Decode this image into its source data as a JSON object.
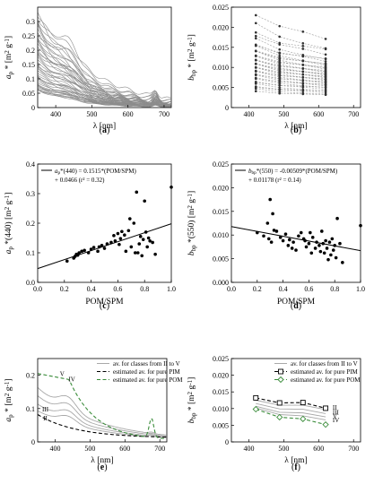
{
  "panels": [
    {
      "id": "a",
      "caption_letter": "a",
      "type": "line",
      "xlabel": "λ [nm]",
      "ylabel": "a_p* [m² g⁻¹]",
      "xlim": [
        350,
        720
      ],
      "ylim": [
        0,
        0.35
      ],
      "xticks": [
        400,
        500,
        600,
        700
      ],
      "yticks": [
        0,
        0.05,
        0.1,
        0.15,
        0.2,
        0.25,
        0.3
      ],
      "yticklabels": [
        "0",
        "0.05",
        "0.1",
        "0.15",
        "0.2",
        "0.25",
        "0.3"
      ],
      "curves": {
        "count": 44,
        "min_amp": 0.06,
        "max_amp": 0.33,
        "peak_nm": 676,
        "color": "#8c8c8c"
      }
    },
    {
      "id": "b",
      "caption_letter": "b",
      "type": "scatter-line",
      "xlabel": "λ [nm]",
      "ylabel": "b_bp* [m² g⁻¹]",
      "xlim": [
        350,
        720
      ],
      "ylim": [
        0,
        0.025
      ],
      "xticks": [
        400,
        500,
        600,
        700
      ],
      "yticks": [
        0,
        0.005,
        0.01,
        0.015,
        0.02,
        0.025
      ],
      "yticklabels": [
        "0",
        "0.005",
        "0.010",
        "0.015",
        "0.020",
        "0.025"
      ],
      "wavelengths": [
        420,
        488,
        555,
        620
      ],
      "series_start_values": [
        0.023,
        0.0205,
        0.0192,
        0.0178,
        0.0168,
        0.0161,
        0.0155,
        0.015,
        0.0145,
        0.0141,
        0.0137,
        0.0133,
        0.0129,
        0.0125,
        0.0122,
        0.0118,
        0.0115,
        0.0112,
        0.0109,
        0.0106,
        0.0103,
        0.01,
        0.0097,
        0.0094,
        0.0091,
        0.0088,
        0.0085,
        0.0082,
        0.0079,
        0.0076,
        0.0073,
        0.007,
        0.0066,
        0.0062,
        0.0058,
        0.0054,
        0.005,
        0.0046,
        0.0042
      ],
      "series_slope": [
        1.0,
        0.86,
        0.8,
        0.74
      ]
    },
    {
      "id": "c",
      "caption_letter": "c",
      "type": "scatter",
      "xlabel": "POM/SPM",
      "ylabel": "a_p*(440) [m² g⁻¹]",
      "xlim": [
        0,
        1
      ],
      "ylim": [
        0,
        0.4
      ],
      "xticks": [
        0,
        0.2,
        0.4,
        0.6,
        0.8,
        1
      ],
      "xticklabels": [
        "0.0",
        "0.2",
        "0.4",
        "0.6",
        "0.8",
        "1.0"
      ],
      "yticks": [
        0,
        0.1,
        0.2,
        0.3,
        0.4
      ],
      "yticklabels": [
        "0.0",
        "0.1",
        "0.2",
        "0.3",
        "0.4"
      ],
      "fit": {
        "slope": 0.1515,
        "intercept": 0.0466
      },
      "legend_line1": "a",
      "legend_line1b": "p",
      "legend_line1c": "*(440) = 0.1515*(POM/SPM)",
      "legend_line2": "+ 0.0466 (r² = 0.32)",
      "points": [
        [
          0.22,
          0.072
        ],
        [
          0.27,
          0.082
        ],
        [
          0.28,
          0.088
        ],
        [
          0.29,
          0.095
        ],
        [
          0.3,
          0.092
        ],
        [
          0.31,
          0.1
        ],
        [
          0.33,
          0.105
        ],
        [
          0.35,
          0.108
        ],
        [
          0.38,
          0.1
        ],
        [
          0.4,
          0.112
        ],
        [
          0.42,
          0.118
        ],
        [
          0.45,
          0.105
        ],
        [
          0.46,
          0.12
        ],
        [
          0.48,
          0.125
        ],
        [
          0.5,
          0.115
        ],
        [
          0.52,
          0.13
        ],
        [
          0.55,
          0.135
        ],
        [
          0.57,
          0.158
        ],
        [
          0.58,
          0.14
        ],
        [
          0.6,
          0.165
        ],
        [
          0.61,
          0.128
        ],
        [
          0.62,
          0.148
        ],
        [
          0.63,
          0.172
        ],
        [
          0.65,
          0.16
        ],
        [
          0.66,
          0.105
        ],
        [
          0.68,
          0.175
        ],
        [
          0.69,
          0.215
        ],
        [
          0.7,
          0.12
        ],
        [
          0.72,
          0.2
        ],
        [
          0.73,
          0.1
        ],
        [
          0.74,
          0.305
        ],
        [
          0.75,
          0.1
        ],
        [
          0.76,
          0.13
        ],
        [
          0.77,
          0.155
        ],
        [
          0.78,
          0.09
        ],
        [
          0.79,
          0.145
        ],
        [
          0.8,
          0.275
        ],
        [
          0.81,
          0.17
        ],
        [
          0.82,
          0.12
        ],
        [
          0.83,
          0.15
        ],
        [
          0.84,
          0.14
        ],
        [
          0.86,
          0.135
        ],
        [
          0.88,
          0.095
        ],
        [
          1.0,
          0.322
        ]
      ]
    },
    {
      "id": "d",
      "caption_letter": "d",
      "type": "scatter",
      "xlabel": "POM/SPM",
      "ylabel": "b_bp*(550) [m² g⁻¹]",
      "xlim": [
        0,
        1
      ],
      "ylim": [
        0,
        0.025
      ],
      "xticks": [
        0,
        0.2,
        0.4,
        0.6,
        0.8,
        1
      ],
      "xticklabels": [
        "0.0",
        "0.2",
        "0.4",
        "0.6",
        "0.8",
        "1.0"
      ],
      "yticks": [
        0,
        0.005,
        0.01,
        0.015,
        0.02,
        0.025
      ],
      "yticklabels": [
        "0.000",
        "0.005",
        "0.010",
        "0.015",
        "0.020",
        "0.025"
      ],
      "fit": {
        "slope": -0.00509,
        "intercept": 0.01178
      },
      "legend_line1": "b",
      "legend_line1b": "bp",
      "legend_line1c": "*(550) = -0.00509*(POM/SPM)",
      "legend_line2": "+ 0.01178 (r² = 0.14)",
      "points": [
        [
          0.2,
          0.0105
        ],
        [
          0.25,
          0.0098
        ],
        [
          0.28,
          0.0125
        ],
        [
          0.29,
          0.0092
        ],
        [
          0.3,
          0.0175
        ],
        [
          0.31,
          0.0085
        ],
        [
          0.32,
          0.0145
        ],
        [
          0.33,
          0.011
        ],
        [
          0.35,
          0.0108
        ],
        [
          0.38,
          0.0095
        ],
        [
          0.4,
          0.0088
        ],
        [
          0.42,
          0.0102
        ],
        [
          0.44,
          0.0078
        ],
        [
          0.45,
          0.009
        ],
        [
          0.47,
          0.0072
        ],
        [
          0.48,
          0.0085
        ],
        [
          0.5,
          0.0068
        ],
        [
          0.52,
          0.0098
        ],
        [
          0.54,
          0.0105
        ],
        [
          0.56,
          0.0092
        ],
        [
          0.57,
          0.0088
        ],
        [
          0.58,
          0.0075
        ],
        [
          0.6,
          0.0082
        ],
        [
          0.61,
          0.0105
        ],
        [
          0.62,
          0.0062
        ],
        [
          0.63,
          0.0095
        ],
        [
          0.65,
          0.0072
        ],
        [
          0.66,
          0.0085
        ],
        [
          0.68,
          0.0078
        ],
        [
          0.69,
          0.0065
        ],
        [
          0.7,
          0.0108
        ],
        [
          0.71,
          0.0082
        ],
        [
          0.72,
          0.0062
        ],
        [
          0.73,
          0.0088
        ],
        [
          0.74,
          0.0072
        ],
        [
          0.75,
          0.0048
        ],
        [
          0.76,
          0.0085
        ],
        [
          0.77,
          0.0058
        ],
        [
          0.78,
          0.0092
        ],
        [
          0.79,
          0.0068
        ],
        [
          0.8,
          0.0078
        ],
        [
          0.81,
          0.0052
        ],
        [
          0.82,
          0.0135
        ],
        [
          0.84,
          0.0082
        ],
        [
          0.86,
          0.0042
        ],
        [
          1.0,
          0.012
        ]
      ]
    },
    {
      "id": "e",
      "caption_letter": "e",
      "type": "line",
      "xlabel": "λ [nm]",
      "ylabel": "a_p* [m² g⁻¹]",
      "xlim": [
        350,
        720
      ],
      "ylim": [
        0,
        0.25
      ],
      "xticks": [
        400,
        500,
        600,
        700
      ],
      "yticks": [
        0,
        0.1,
        0.2
      ],
      "yticklabels": [
        "0",
        "0.1",
        "0.2"
      ],
      "legend": [
        "av. for classes from II to V",
        "estimated av. for pure PIM",
        "estimated av. for pure POM"
      ],
      "class_labels": [
        "II",
        "III",
        "IV",
        "V"
      ],
      "colors": {
        "classes": "#a8a8a8",
        "pim": "#000000",
        "pom": "#3a8c3a"
      }
    },
    {
      "id": "f",
      "caption_letter": "f",
      "type": "line",
      "xlabel": "λ [nm]",
      "ylabel": "b_bp* [m² g⁻¹]",
      "xlim": [
        350,
        720
      ],
      "ylim": [
        0,
        0.025
      ],
      "xticks": [
        400,
        500,
        600,
        700
      ],
      "yticks": [
        0,
        0.005,
        0.01,
        0.015,
        0.02,
        0.025
      ],
      "yticklabels": [
        "0",
        "0.005",
        "0.010",
        "0.015",
        "0.020",
        "0.025"
      ],
      "legend": [
        "av. for classes from II to V",
        "estimated av. for pure PIM",
        "estimated av. for pure POM"
      ],
      "class_labels": [
        "II",
        "III",
        "V",
        "IV"
      ],
      "wavelengths": [
        420,
        488,
        555,
        620
      ],
      "pim": [
        0.0132,
        0.0117,
        0.0118,
        0.0101
      ],
      "pom": [
        0.0098,
        0.0074,
        0.0069,
        0.0052
      ],
      "classes": [
        [
          0.0125,
          0.011,
          0.011,
          0.0097
        ],
        [
          0.0115,
          0.0099,
          0.0098,
          0.0085
        ],
        [
          0.0107,
          0.0089,
          0.0087,
          0.0075
        ],
        [
          0.0102,
          0.0082,
          0.0078,
          0.0066
        ]
      ],
      "colors": {
        "classes": "#a8a8a8",
        "pim": "#000000",
        "pom": "#3a8c3a"
      }
    }
  ]
}
